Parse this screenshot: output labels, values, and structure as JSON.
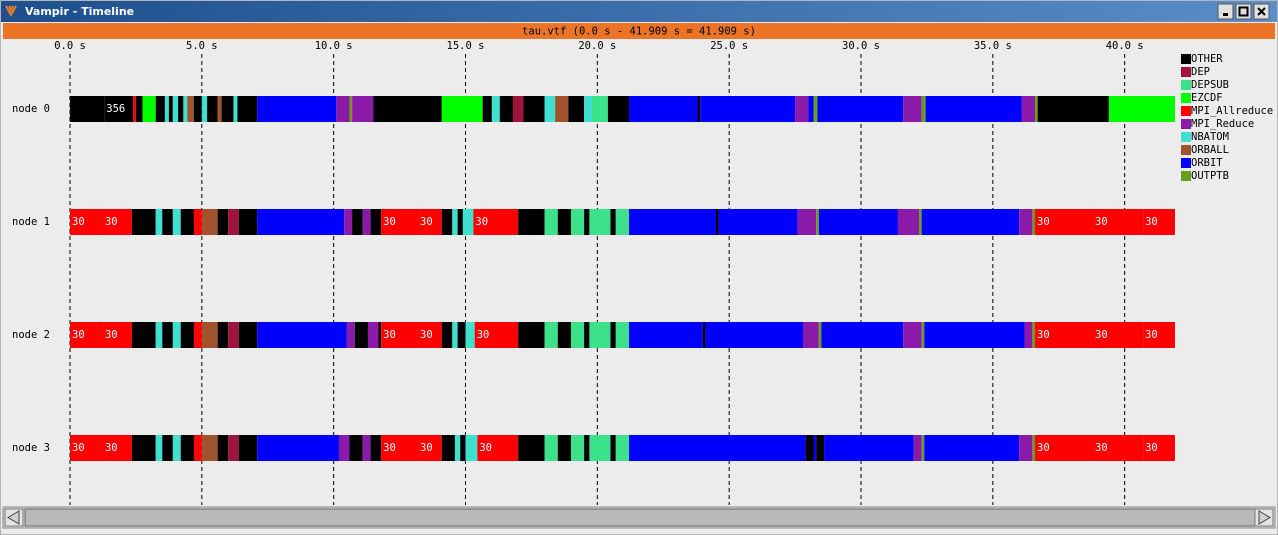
{
  "window": {
    "title": "Vampir - Timeline"
  },
  "timeline": {
    "header": "tau.vtf (0.0 s - 41.909 s = 41.909 s)",
    "xlim": [
      0,
      41.909
    ],
    "xticks": [
      {
        "value": 0,
        "label": "0.0 s"
      },
      {
        "value": 5,
        "label": "5.0 s"
      },
      {
        "value": 10,
        "label": "10.0 s"
      },
      {
        "value": 15,
        "label": "15.0 s"
      },
      {
        "value": 20,
        "label": "20.0 s"
      },
      {
        "value": 25,
        "label": "25.0 s"
      },
      {
        "value": 30,
        "label": "30.0 s"
      },
      {
        "value": 35,
        "label": "35.0 s"
      },
      {
        "value": 40,
        "label": "40.0 s"
      }
    ],
    "states": [
      {
        "name": "OTHER",
        "color": "#000000"
      },
      {
        "name": "DEP",
        "color": "#a0143c"
      },
      {
        "name": "DEPSUB",
        "color": "#3ce28a"
      },
      {
        "name": "EZCDF",
        "color": "#00ff00"
      },
      {
        "name": "MPI_Allreduce",
        "color": "#ff0000"
      },
      {
        "name": "MPI_Reduce",
        "color": "#8c1aa8"
      },
      {
        "name": "NBATOM",
        "color": "#40e0d0"
      },
      {
        "name": "ORBALL",
        "color": "#a0522d"
      },
      {
        "name": "ORBIT",
        "color": "#0000ff"
      },
      {
        "name": "OUTPTB",
        "color": "#6b9e1e"
      }
    ],
    "nodes": [
      {
        "name": "node 0",
        "segments": [
          [
            0,
            1.3,
            0
          ],
          [
            1.3,
            2.4,
            0,
            "356"
          ],
          [
            2.4,
            2.5,
            4
          ],
          [
            2.5,
            2.75,
            0
          ],
          [
            2.75,
            3.25,
            3
          ],
          [
            3.25,
            3.6,
            0
          ],
          [
            3.6,
            3.75,
            6
          ],
          [
            3.75,
            3.9,
            0
          ],
          [
            3.9,
            4.1,
            6
          ],
          [
            4.1,
            4.3,
            0
          ],
          [
            4.3,
            4.45,
            6
          ],
          [
            4.45,
            4.7,
            7
          ],
          [
            4.7,
            5.0,
            0
          ],
          [
            5.0,
            5.2,
            6
          ],
          [
            5.2,
            5.6,
            0
          ],
          [
            5.6,
            5.75,
            7
          ],
          [
            5.75,
            6.2,
            0
          ],
          [
            6.2,
            6.35,
            6
          ],
          [
            6.35,
            7.1,
            0
          ],
          [
            7.1,
            10.1,
            8
          ],
          [
            10.1,
            10.6,
            5
          ],
          [
            10.6,
            10.7,
            9
          ],
          [
            10.7,
            11.5,
            5
          ],
          [
            11.5,
            14.1,
            0
          ],
          [
            14.1,
            15.65,
            3
          ],
          [
            15.65,
            16.0,
            0
          ],
          [
            16.0,
            16.3,
            6
          ],
          [
            16.3,
            16.8,
            0
          ],
          [
            16.8,
            17.2,
            1
          ],
          [
            17.2,
            18.0,
            0
          ],
          [
            18.0,
            18.4,
            6
          ],
          [
            18.4,
            18.9,
            7
          ],
          [
            18.9,
            19.5,
            0
          ],
          [
            19.5,
            19.8,
            6
          ],
          [
            19.8,
            20.4,
            2
          ],
          [
            20.4,
            21.2,
            0
          ],
          [
            21.2,
            23.8,
            8
          ],
          [
            23.8,
            23.9,
            0
          ],
          [
            23.9,
            27.5,
            8
          ],
          [
            27.5,
            28.0,
            5
          ],
          [
            28.0,
            28.2,
            8
          ],
          [
            28.2,
            28.35,
            9
          ],
          [
            28.35,
            31.6,
            8
          ],
          [
            31.6,
            32.3,
            5
          ],
          [
            32.3,
            32.45,
            9
          ],
          [
            32.45,
            36.1,
            8
          ],
          [
            36.1,
            36.6,
            5
          ],
          [
            36.6,
            36.7,
            9
          ],
          [
            36.7,
            39.4,
            0
          ],
          [
            39.4,
            41.909,
            3
          ]
        ]
      },
      {
        "name": "node 1",
        "segments": [
          [
            0,
            1.25,
            4,
            "30"
          ],
          [
            1.25,
            2.35,
            4,
            "30"
          ],
          [
            2.35,
            3.25,
            0
          ],
          [
            3.25,
            3.5,
            6
          ],
          [
            3.5,
            3.9,
            0
          ],
          [
            3.9,
            4.2,
            6
          ],
          [
            4.2,
            4.7,
            0
          ],
          [
            4.7,
            5.0,
            4
          ],
          [
            5.0,
            5.6,
            7
          ],
          [
            5.6,
            6.0,
            0
          ],
          [
            6.0,
            6.4,
            1
          ],
          [
            6.4,
            7.1,
            0
          ],
          [
            7.1,
            10.4,
            8
          ],
          [
            10.4,
            10.7,
            5
          ],
          [
            10.7,
            11.1,
            0
          ],
          [
            11.1,
            11.4,
            5
          ],
          [
            11.4,
            11.8,
            0
          ],
          [
            11.8,
            13.2,
            4,
            "30"
          ],
          [
            13.2,
            14.1,
            4,
            "30"
          ],
          [
            14.1,
            14.5,
            0
          ],
          [
            14.5,
            14.7,
            6
          ],
          [
            14.7,
            14.9,
            0
          ],
          [
            14.9,
            15.3,
            6
          ],
          [
            15.3,
            17.0,
            4,
            "30"
          ],
          [
            17.0,
            18.0,
            0
          ],
          [
            18.0,
            18.5,
            2
          ],
          [
            18.5,
            19.0,
            0
          ],
          [
            19.0,
            19.5,
            2
          ],
          [
            19.5,
            19.7,
            0
          ],
          [
            19.7,
            20.5,
            2
          ],
          [
            20.5,
            20.7,
            0
          ],
          [
            20.7,
            21.2,
            2
          ],
          [
            21.2,
            24.5,
            8
          ],
          [
            24.5,
            24.6,
            0
          ],
          [
            24.6,
            27.6,
            8
          ],
          [
            27.6,
            28.3,
            5
          ],
          [
            28.3,
            28.4,
            9
          ],
          [
            28.4,
            31.4,
            8
          ],
          [
            31.4,
            32.2,
            5
          ],
          [
            32.2,
            32.3,
            9
          ],
          [
            32.3,
            36.0,
            8
          ],
          [
            36.0,
            36.5,
            5
          ],
          [
            36.5,
            36.6,
            9
          ],
          [
            36.6,
            38.8,
            4,
            "30"
          ],
          [
            38.8,
            40.7,
            4,
            "30"
          ],
          [
            40.7,
            41.909,
            4,
            "30"
          ]
        ]
      },
      {
        "name": "node 2",
        "segments": [
          [
            0,
            1.25,
            4,
            "30"
          ],
          [
            1.25,
            2.35,
            4,
            "30"
          ],
          [
            2.35,
            3.25,
            0
          ],
          [
            3.25,
            3.5,
            6
          ],
          [
            3.5,
            3.9,
            0
          ],
          [
            3.9,
            4.2,
            6
          ],
          [
            4.2,
            4.7,
            0
          ],
          [
            4.7,
            5.0,
            4
          ],
          [
            5.0,
            5.6,
            7
          ],
          [
            5.6,
            6.0,
            0
          ],
          [
            6.0,
            6.4,
            1
          ],
          [
            6.4,
            7.1,
            0
          ],
          [
            7.1,
            10.5,
            8
          ],
          [
            10.5,
            10.8,
            5
          ],
          [
            10.8,
            11.3,
            0
          ],
          [
            11.3,
            11.7,
            5
          ],
          [
            11.7,
            11.8,
            0
          ],
          [
            11.8,
            13.2,
            4,
            "30"
          ],
          [
            13.2,
            14.1,
            4,
            "30"
          ],
          [
            14.1,
            14.5,
            0
          ],
          [
            14.5,
            14.7,
            6
          ],
          [
            14.7,
            15.0,
            0
          ],
          [
            15.0,
            15.35,
            6
          ],
          [
            15.35,
            17.0,
            4,
            "30"
          ],
          [
            17.0,
            18.0,
            0
          ],
          [
            18.0,
            18.5,
            2
          ],
          [
            18.5,
            19.0,
            0
          ],
          [
            19.0,
            19.5,
            2
          ],
          [
            19.5,
            19.7,
            0
          ],
          [
            19.7,
            20.5,
            2
          ],
          [
            20.5,
            20.7,
            0
          ],
          [
            20.7,
            21.2,
            2
          ],
          [
            21.2,
            24.0,
            8
          ],
          [
            24.0,
            24.1,
            0
          ],
          [
            24.1,
            27.8,
            8
          ],
          [
            27.8,
            28.4,
            5
          ],
          [
            28.4,
            28.5,
            9
          ],
          [
            28.5,
            31.6,
            8
          ],
          [
            31.6,
            32.3,
            5
          ],
          [
            32.3,
            32.4,
            9
          ],
          [
            32.4,
            36.2,
            8
          ],
          [
            36.2,
            36.5,
            5
          ],
          [
            36.5,
            36.6,
            9
          ],
          [
            36.6,
            38.8,
            4,
            "30"
          ],
          [
            38.8,
            40.7,
            4,
            "30"
          ],
          [
            40.7,
            41.909,
            4,
            "30"
          ]
        ]
      },
      {
        "name": "node 3",
        "segments": [
          [
            0,
            1.25,
            4,
            "30"
          ],
          [
            1.25,
            2.35,
            4,
            "30"
          ],
          [
            2.35,
            3.25,
            0
          ],
          [
            3.25,
            3.5,
            6
          ],
          [
            3.5,
            3.9,
            0
          ],
          [
            3.9,
            4.2,
            6
          ],
          [
            4.2,
            4.7,
            0
          ],
          [
            4.7,
            5.0,
            4
          ],
          [
            5.0,
            5.6,
            7
          ],
          [
            5.6,
            6.0,
            0
          ],
          [
            6.0,
            6.4,
            1
          ],
          [
            6.4,
            7.1,
            0
          ],
          [
            7.1,
            10.2,
            8
          ],
          [
            10.2,
            10.6,
            5
          ],
          [
            10.6,
            11.1,
            0
          ],
          [
            11.1,
            11.4,
            5
          ],
          [
            11.4,
            11.8,
            0
          ],
          [
            11.8,
            13.2,
            4,
            "30"
          ],
          [
            13.2,
            14.1,
            4,
            "30"
          ],
          [
            14.1,
            14.6,
            0
          ],
          [
            14.6,
            14.8,
            6
          ],
          [
            14.8,
            15.0,
            0
          ],
          [
            15.0,
            15.45,
            6
          ],
          [
            15.45,
            17.0,
            4,
            "30"
          ],
          [
            17.0,
            18.0,
            0
          ],
          [
            18.0,
            18.5,
            2
          ],
          [
            18.5,
            19.0,
            0
          ],
          [
            19.0,
            19.5,
            2
          ],
          [
            19.5,
            19.7,
            0
          ],
          [
            19.7,
            20.5,
            2
          ],
          [
            20.5,
            20.7,
            0
          ],
          [
            20.7,
            21.2,
            2
          ],
          [
            21.2,
            27.9,
            8
          ],
          [
            27.9,
            28.2,
            0
          ],
          [
            28.2,
            28.3,
            8
          ],
          [
            28.3,
            28.6,
            0
          ],
          [
            28.6,
            32.0,
            8
          ],
          [
            32.0,
            32.3,
            5
          ],
          [
            32.3,
            32.4,
            9
          ],
          [
            32.4,
            36.0,
            8
          ],
          [
            36.0,
            36.5,
            5
          ],
          [
            36.5,
            36.6,
            9
          ],
          [
            36.6,
            38.8,
            4,
            "30"
          ],
          [
            38.8,
            40.7,
            4,
            "30"
          ],
          [
            40.7,
            41.909,
            4,
            "30"
          ]
        ]
      }
    ]
  }
}
